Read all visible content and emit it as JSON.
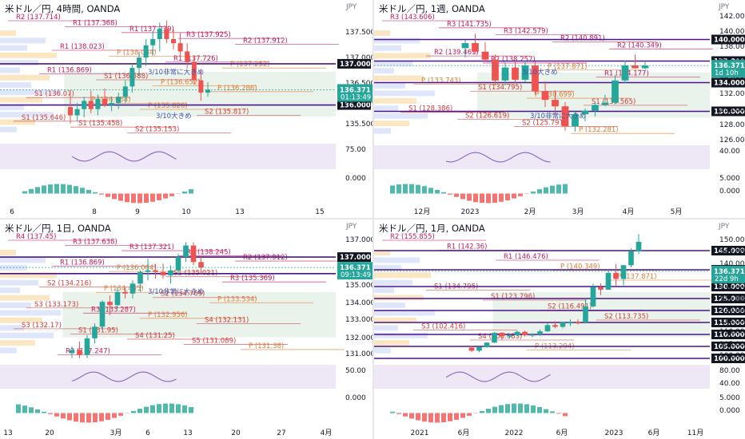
{
  "colors": {
    "bull": "#26a69a",
    "bear": "#ef5350",
    "level_purple": "#4a148c",
    "ichimoku_cloud": "#d7eadb",
    "price_badge": "#26a69a",
    "round_badge": "#131722",
    "gold_badge": "#b39a5a"
  },
  "panes": [
    {
      "id": "h4",
      "title": "米ドル／円, 4時間, OANDA",
      "currency": "JPY",
      "y_ticks": [
        "137.500",
        "137.000",
        "136.500",
        "136.000",
        "135.500"
      ],
      "x_ticks": [
        "6",
        "8",
        "9",
        "10",
        "13",
        "15"
      ],
      "last_price": "136.371",
      "countdown": "01:13:49",
      "round_levels": [
        "137.000",
        "136.000"
      ],
      "pivot_labels": [
        "R2 (137.714)",
        "R1 (137.368)",
        "R1 (137.239)",
        "R3 (137.925)",
        "R2 (137.912)",
        "R1 (138.023)",
        "P (138.034)",
        "R1 (137.726)",
        "P (137.252)",
        "R1 (136.869)",
        "S1 (136.588)",
        "P (136.652)",
        "P (136.286)",
        "S1 (136.07)",
        "P (136.064)",
        "P (135.826)",
        "S2 (135.817)",
        "S1 (135.646)",
        "S1 (135.458)",
        "S2 (135.153)"
      ],
      "notes": [
        "3/10非常に大きめ",
        "3/10大きめ"
      ],
      "osc_ticks": [
        "75.00"
      ],
      "macd_ticks": [
        "0.000"
      ]
    },
    {
      "id": "w1",
      "title": "米ドル／円, 1週, OANDA",
      "currency": "JPY",
      "y_ticks": [
        "142.000",
        "140.000",
        "138.000",
        "136.000",
        "134.000",
        "132.000",
        "130.000",
        "128.000",
        "126.000"
      ],
      "x_ticks": [
        "12月",
        "2023",
        "2月",
        "3月",
        "4月",
        "5月"
      ],
      "last_price": "136.371",
      "countdown": "1d 10h",
      "round_levels": [
        "140.000",
        "137.000",
        "134.000",
        "130.000"
      ],
      "pivot_labels": [
        "R3 (143.606)",
        "R3 (141.735)",
        "R3 (142.579)",
        "R2 (140.891)",
        "R2 (140.349)",
        "R2 (139.461)",
        "R2 (138.257)",
        "P (137.871)",
        "R1 (134.177)",
        "P (133.743)",
        "S1 (134.795)",
        "P (130.699)",
        "S1 (130.565)",
        "S1 (128.386)",
        "S2 (126.619)",
        "S2 (125.791)",
        "P (132.281)"
      ],
      "notes": [
        "3/10大きめ",
        "3/10非常に大きめ"
      ],
      "osc_ticks": [
        "40.00"
      ],
      "macd_ticks": [
        "5.000",
        "0.000"
      ]
    },
    {
      "id": "d1",
      "title": "米ドル／円, 1日, OANDA",
      "currency": "JPY",
      "y_ticks": [
        "137.000",
        "136.000",
        "135.000",
        "134.000",
        "133.000",
        "132.000",
        "131.000"
      ],
      "x_ticks": [
        "13",
        "20",
        "3月",
        "6",
        "13",
        "20",
        "27",
        "4月"
      ],
      "last_price": "136.371",
      "countdown": "09:13:49",
      "round_levels": [
        "137.000",
        "136.000"
      ],
      "pivot_labels": [
        "R4 (137.45)",
        "R3 (137.638)",
        "R3 (137.321)",
        "R2 (138.245)",
        "R2 (137.912)",
        "R1 (136.869)",
        "P (136.064)",
        "S1 (135.021)",
        "R3 (135.369)",
        "S2 (134.216)",
        "P (134.485)",
        "S2 (134.769)",
        "P (133.534)",
        "S3 (133.173)",
        "R3 (133.287)",
        "P (132.956)",
        "S4 (132.131)",
        "S3 (132.17)",
        "S1 (131.95)",
        "S4 (131.25)",
        "S5 (131.089)",
        "P (131.38)",
        "R2 (137.247)"
      ],
      "notes": [
        "3/10非常に大きめ"
      ],
      "osc_ticks": [
        "50.00"
      ],
      "macd_ticks": [
        "0.000"
      ]
    },
    {
      "id": "mn",
      "title": "米ドル／円, 1月, OANDA",
      "currency": "JPY",
      "y_ticks": [
        "150.000",
        "145.000",
        "140.000",
        "137.000",
        "136.371",
        "130.000",
        "125.000",
        "120.000",
        "115.000",
        "110.000",
        "105.000",
        "100.000"
      ],
      "x_ticks": [
        "2021",
        "6月",
        "2022",
        "6月",
        "2023",
        "6月",
        "11月"
      ],
      "last_price": "136.371",
      "countdown": "22d 9h",
      "round_levels": [
        "145.000",
        "137.000",
        "130.000",
        "125.000",
        "120.000",
        "115.000",
        "110.000",
        "105.000",
        "100.000"
      ],
      "pivot_labels": [
        "R2 (155.855)",
        "R1 (142.36)",
        "R1 (146.476)",
        "P (140.349)",
        "P (137.871)",
        "S1 (134.795)",
        "S1 (123.796)",
        "S2 (116.491)",
        "S2 (113.735)",
        "S3 (102.416)",
        "S4 (108.383)",
        "P (113.294)"
      ],
      "notes": [],
      "osc_ticks": [
        "80.00",
        "40.00"
      ],
      "macd_ticks": [
        "5.000",
        "0.000"
      ]
    }
  ],
  "chart_data": [
    {
      "type": "candlestick",
      "title": "米ドル／円, 4時間, OANDA",
      "ylabel": "JPY",
      "ylim": [
        135.1,
        138.2
      ],
      "candles": [
        {
          "o": 135.95,
          "h": 136.3,
          "l": 135.55,
          "c": 135.75
        },
        {
          "o": 135.75,
          "h": 136.05,
          "l": 135.6,
          "c": 135.9
        },
        {
          "o": 135.9,
          "h": 136.2,
          "l": 135.7,
          "c": 136.1
        },
        {
          "o": 136.1,
          "h": 136.35,
          "l": 135.8,
          "c": 135.9
        },
        {
          "o": 135.9,
          "h": 136.25,
          "l": 135.75,
          "c": 136.15
        },
        {
          "o": 136.15,
          "h": 136.4,
          "l": 135.95,
          "c": 136.0
        },
        {
          "o": 136.0,
          "h": 136.2,
          "l": 135.85,
          "c": 136.05
        },
        {
          "o": 136.05,
          "h": 136.3,
          "l": 135.9,
          "c": 136.2
        },
        {
          "o": 136.2,
          "h": 136.6,
          "l": 136.05,
          "c": 136.45
        },
        {
          "o": 136.45,
          "h": 137.0,
          "l": 136.3,
          "c": 136.9
        },
        {
          "o": 136.9,
          "h": 137.3,
          "l": 136.7,
          "c": 137.15
        },
        {
          "o": 137.15,
          "h": 137.6,
          "l": 136.95,
          "c": 137.45
        },
        {
          "o": 137.45,
          "h": 137.8,
          "l": 137.2,
          "c": 137.6
        },
        {
          "o": 137.6,
          "h": 138.0,
          "l": 137.3,
          "c": 137.85
        },
        {
          "o": 137.85,
          "h": 138.05,
          "l": 137.5,
          "c": 137.6
        },
        {
          "o": 137.6,
          "h": 137.85,
          "l": 137.35,
          "c": 137.5
        },
        {
          "o": 137.5,
          "h": 137.75,
          "l": 137.2,
          "c": 137.3
        },
        {
          "o": 137.3,
          "h": 137.5,
          "l": 136.9,
          "c": 137.05
        },
        {
          "o": 137.05,
          "h": 137.2,
          "l": 136.5,
          "c": 136.6
        },
        {
          "o": 136.6,
          "h": 136.85,
          "l": 136.1,
          "c": 136.3
        },
        {
          "o": 136.3,
          "h": 136.55,
          "l": 136.2,
          "c": 136.37
        }
      ]
    },
    {
      "type": "candlestick",
      "title": "米ドル／円, 1週, OANDA",
      "ylabel": "JPY",
      "ylim": [
        125.5,
        143.5
      ],
      "candles": [
        {
          "o": 138.8,
          "h": 139.9,
          "l": 137.5,
          "c": 139.5
        },
        {
          "o": 139.5,
          "h": 140.8,
          "l": 138.1,
          "c": 138.3
        },
        {
          "o": 138.3,
          "h": 139.6,
          "l": 137.0,
          "c": 137.2
        },
        {
          "o": 137.2,
          "h": 137.9,
          "l": 133.6,
          "c": 134.3
        },
        {
          "o": 134.3,
          "h": 136.8,
          "l": 133.6,
          "c": 136.1
        },
        {
          "o": 136.1,
          "h": 137.2,
          "l": 133.9,
          "c": 134.4
        },
        {
          "o": 134.4,
          "h": 137.1,
          "l": 134.0,
          "c": 136.4
        },
        {
          "o": 136.4,
          "h": 136.9,
          "l": 132.3,
          "c": 132.8
        },
        {
          "o": 132.8,
          "h": 134.2,
          "l": 130.6,
          "c": 131.6
        },
        {
          "o": 131.6,
          "h": 132.9,
          "l": 129.6,
          "c": 130.7
        },
        {
          "o": 130.7,
          "h": 131.3,
          "l": 127.3,
          "c": 127.9
        },
        {
          "o": 127.9,
          "h": 130.0,
          "l": 127.2,
          "c": 129.6
        },
        {
          "o": 129.6,
          "h": 130.4,
          "l": 128.6,
          "c": 130.1
        },
        {
          "o": 130.1,
          "h": 131.3,
          "l": 129.3,
          "c": 130.9
        },
        {
          "o": 130.9,
          "h": 132.3,
          "l": 130.7,
          "c": 131.2
        },
        {
          "o": 131.2,
          "h": 135.1,
          "l": 131.0,
          "c": 134.3
        },
        {
          "o": 134.3,
          "h": 137.1,
          "l": 133.9,
          "c": 136.4
        },
        {
          "o": 136.4,
          "h": 137.9,
          "l": 135.9,
          "c": 136.0
        },
        {
          "o": 136.0,
          "h": 137.0,
          "l": 135.8,
          "c": 136.37
        }
      ]
    },
    {
      "type": "candlestick",
      "title": "米ドル／円, 1日, OANDA",
      "ylabel": "JPY",
      "ylim": [
        130.6,
        138.4
      ],
      "candles": [
        {
          "o": 131.2,
          "h": 131.6,
          "l": 130.9,
          "c": 131.4
        },
        {
          "o": 131.4,
          "h": 131.9,
          "l": 130.9,
          "c": 131.1
        },
        {
          "o": 131.1,
          "h": 132.3,
          "l": 130.9,
          "c": 132.1
        },
        {
          "o": 132.1,
          "h": 133.0,
          "l": 131.8,
          "c": 132.8
        },
        {
          "o": 132.8,
          "h": 134.4,
          "l": 132.6,
          "c": 134.3
        },
        {
          "o": 134.3,
          "h": 134.7,
          "l": 133.5,
          "c": 134.1
        },
        {
          "o": 134.1,
          "h": 135.2,
          "l": 133.9,
          "c": 134.9
        },
        {
          "o": 134.9,
          "h": 135.2,
          "l": 134.5,
          "c": 134.8
        },
        {
          "o": 134.8,
          "h": 135.6,
          "l": 134.5,
          "c": 135.4
        },
        {
          "o": 135.4,
          "h": 136.2,
          "l": 134.9,
          "c": 136.1
        },
        {
          "o": 136.1,
          "h": 136.9,
          "l": 135.6,
          "c": 136.2
        },
        {
          "o": 136.2,
          "h": 136.6,
          "l": 135.7,
          "c": 136.1
        },
        {
          "o": 136.1,
          "h": 136.6,
          "l": 135.7,
          "c": 135.9
        },
        {
          "o": 135.9,
          "h": 136.5,
          "l": 135.4,
          "c": 136.2
        },
        {
          "o": 136.2,
          "h": 137.2,
          "l": 135.9,
          "c": 137.0
        },
        {
          "o": 137.0,
          "h": 137.9,
          "l": 136.7,
          "c": 137.7
        },
        {
          "o": 137.7,
          "h": 137.9,
          "l": 136.5,
          "c": 136.7
        },
        {
          "o": 136.7,
          "h": 137.0,
          "l": 136.0,
          "c": 136.37
        }
      ]
    },
    {
      "type": "candlestick",
      "title": "米ドル／円, 1月, OANDA",
      "ylabel": "JPY",
      "ylim": [
        98,
        152
      ],
      "candles": [
        {
          "o": 104.5,
          "h": 105.2,
          "l": 102.6,
          "c": 103.2
        },
        {
          "o": 103.2,
          "h": 104.9,
          "l": 102.6,
          "c": 104.7
        },
        {
          "o": 104.7,
          "h": 106.7,
          "l": 104.4,
          "c": 106.6
        },
        {
          "o": 106.6,
          "h": 110.9,
          "l": 106.4,
          "c": 110.7
        },
        {
          "o": 110.7,
          "h": 110.9,
          "l": 107.6,
          "c": 109.3
        },
        {
          "o": 109.3,
          "h": 110.3,
          "l": 108.3,
          "c": 109.6
        },
        {
          "o": 109.6,
          "h": 111.6,
          "l": 109.2,
          "c": 111.1
        },
        {
          "o": 111.1,
          "h": 111.6,
          "l": 109.1,
          "c": 109.7
        },
        {
          "o": 109.7,
          "h": 110.5,
          "l": 108.8,
          "c": 110.0
        },
        {
          "o": 110.0,
          "h": 112.1,
          "l": 109.4,
          "c": 111.3
        },
        {
          "o": 111.3,
          "h": 114.7,
          "l": 111.1,
          "c": 113.9
        },
        {
          "o": 113.9,
          "h": 115.5,
          "l": 112.6,
          "c": 113.2
        },
        {
          "o": 113.2,
          "h": 115.2,
          "l": 112.5,
          "c": 115.1
        },
        {
          "o": 115.1,
          "h": 116.3,
          "l": 113.5,
          "c": 115.1
        },
        {
          "o": 115.1,
          "h": 116.3,
          "l": 114.2,
          "c": 115.0
        },
        {
          "o": 115.0,
          "h": 125.1,
          "l": 114.6,
          "c": 121.7
        },
        {
          "o": 121.7,
          "h": 131.3,
          "l": 121.3,
          "c": 129.8
        },
        {
          "o": 129.8,
          "h": 131.3,
          "l": 126.4,
          "c": 128.7
        },
        {
          "o": 128.7,
          "h": 137.0,
          "l": 128.6,
          "c": 135.7
        },
        {
          "o": 135.7,
          "h": 139.4,
          "l": 130.4,
          "c": 133.2
        },
        {
          "o": 133.2,
          "h": 139.1,
          "l": 130.4,
          "c": 138.9
        },
        {
          "o": 138.9,
          "h": 145.9,
          "l": 138.0,
          "c": 144.7
        },
        {
          "o": 144.7,
          "h": 151.9,
          "l": 143.5,
          "c": 148.7
        },
        {
          "o": 148.7,
          "h": 148.8,
          "l": 137.7,
          "c": 138.1
        },
        {
          "o": 138.1,
          "h": 139.9,
          "l": 130.4,
          "c": 131.1
        },
        {
          "o": 131.1,
          "h": 131.6,
          "l": 127.2,
          "c": 130.1
        },
        {
          "o": 130.1,
          "h": 137.1,
          "l": 128.9,
          "c": 136.2
        },
        {
          "o": 136.2,
          "h": 137.9,
          "l": 135.9,
          "c": 136.37
        }
      ]
    }
  ]
}
